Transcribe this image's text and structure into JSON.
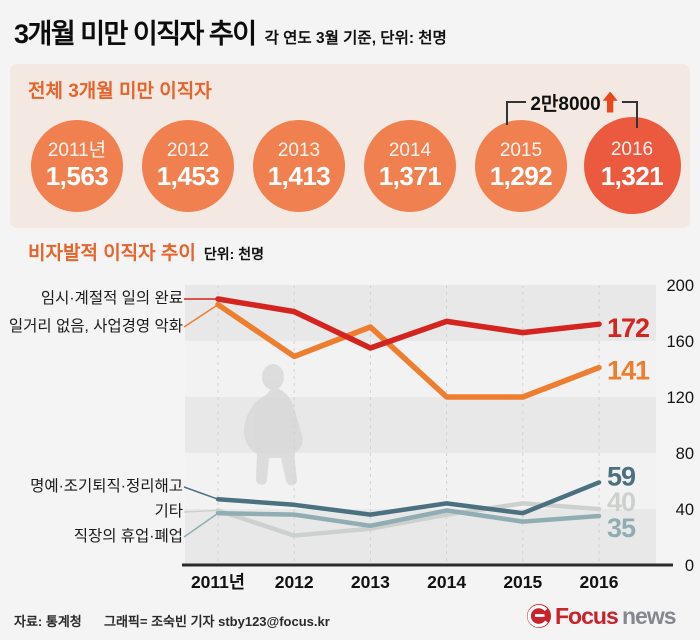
{
  "page": {
    "title": "3개월 미만 이직자 추이",
    "subtitle": "각 연도 3월 기준, 단위: 천명"
  },
  "summary": {
    "title": "전체 3개월 미만 이직자",
    "items": [
      {
        "year": "2011년",
        "value": "1,563",
        "highlight": false
      },
      {
        "year": "2012",
        "value": "1,453",
        "highlight": false
      },
      {
        "year": "2013",
        "value": "1,413",
        "highlight": false
      },
      {
        "year": "2014",
        "value": "1,371",
        "highlight": false
      },
      {
        "year": "2015",
        "value": "1,292",
        "highlight": false
      },
      {
        "year": "2016",
        "value": "1,321",
        "highlight": true
      }
    ],
    "annotation": {
      "label": "2만8000",
      "direction": "up"
    }
  },
  "section": {
    "title": "비자발적 이직자 추이",
    "unit": "단위: 천명"
  },
  "chart_data": {
    "type": "line",
    "x": [
      "2011년",
      "2012",
      "2013",
      "2014",
      "2015",
      "2016"
    ],
    "series": [
      {
        "name": "임시·계절적 일의 완료",
        "color": "#d42420",
        "values": [
          190,
          181,
          155,
          174,
          166,
          172
        ],
        "end_label": "172",
        "label_dy": 13
      },
      {
        "name": "일거리 없음, 사업경영 악화",
        "color": "#ee7e2f",
        "values": [
          186,
          149,
          170,
          120,
          120,
          141
        ],
        "end_label": "141",
        "label_dy": 12
      },
      {
        "name": "명예·조기퇴직·정리해고",
        "color": "#4b7181",
        "values": [
          47,
          43,
          36,
          44,
          37,
          59
        ],
        "end_label": "59",
        "label_dy": 3
      },
      {
        "name": "기타",
        "color": "#cdd1ce",
        "values": [
          39,
          21,
          26,
          36,
          44,
          40
        ],
        "end_label": "40",
        "label_dy": 2
      },
      {
        "name": "직장의 휴업·폐업",
        "color": "#8fadb3",
        "values": [
          37,
          36,
          28,
          39,
          31,
          35
        ],
        "end_label": "35",
        "label_dy": 21
      }
    ],
    "ylim": [
      0,
      200
    ],
    "yticks": [
      200,
      160,
      120,
      80,
      40,
      0
    ],
    "grid": "vertical-dashed",
    "band_colors": [
      "#e8e8e8",
      "#f2f2f2"
    ],
    "legend_position": "left-labels"
  },
  "footer": {
    "source": "자료: 통계청",
    "credit": "그래픽= 조숙빈 기자 stby123@focus.kr",
    "logo_brand": "Focus",
    "logo_suffix": "news"
  },
  "colors": {
    "accent_orange": "#e7632c",
    "panel_bg": "#f3e9e2",
    "circle_orange": "#f08050",
    "circle_highlight": "#eb5a3e",
    "annotation_arrow": "#e8481c",
    "logo_red": "#c8232a",
    "logo_gray": "#85898e"
  }
}
